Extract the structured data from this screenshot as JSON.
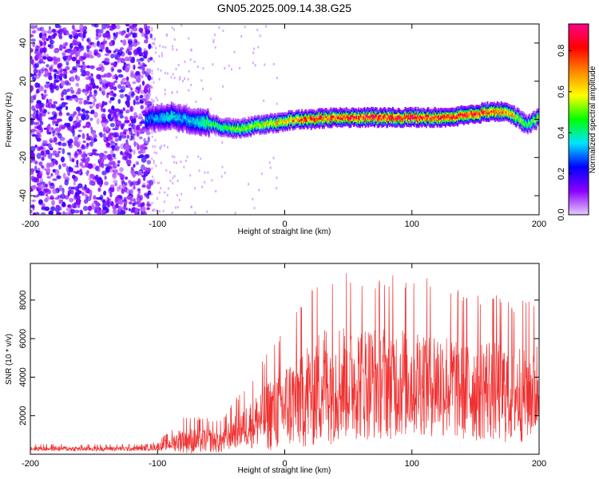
{
  "title": "GN05.2025.009.14.38.G25",
  "chart_data": [
    {
      "type": "heatmap",
      "xlabel": "Height of straight line (km)",
      "ylabel": "Frequency (Hz)",
      "xlim": [
        -200,
        200
      ],
      "ylim": [
        -50,
        50
      ],
      "xticks": [
        "-200",
        "-100",
        "0",
        "100",
        "200"
      ],
      "yticks": [
        "-40",
        "-20",
        "0",
        "20",
        "40"
      ],
      "colorbar": {
        "label": "Normalized spectral amplitude",
        "range": [
          0,
          0.93
        ],
        "ticks": [
          "0.0",
          "0.2",
          "0.4",
          "0.6",
          "0.8"
        ],
        "colormap": [
          "#e6ccff",
          "#8a00ff",
          "#0000ff",
          "#00e5ff",
          "#00ff00",
          "#ffff00",
          "#ff8800",
          "#ff0000",
          "#ff0088"
        ]
      },
      "ridge": {
        "x": [
          -110,
          -100,
          -90,
          -80,
          -70,
          -60,
          -50,
          -40,
          -30,
          -20,
          -10,
          0,
          10,
          20,
          30,
          40,
          50,
          60,
          70,
          80,
          90,
          100,
          110,
          120,
          130,
          140,
          150,
          160,
          170,
          180,
          190,
          200
        ],
        "frequency": [
          0,
          1,
          2,
          0,
          -1,
          -2,
          -4,
          -5,
          -4,
          -3,
          -2,
          -1,
          0,
          0,
          0.5,
          1,
          1,
          1,
          1,
          1,
          1,
          1,
          1,
          1,
          1.5,
          2,
          3,
          4,
          4,
          2,
          -3,
          1
        ],
        "peak_amplitude": [
          0.3,
          0.35,
          0.4,
          0.35,
          0.4,
          0.5,
          0.5,
          0.55,
          0.6,
          0.6,
          0.65,
          0.7,
          0.75,
          0.8,
          0.8,
          0.82,
          0.85,
          0.88,
          0.9,
          0.9,
          0.9,
          0.88,
          0.85,
          0.85,
          0.85,
          0.85,
          0.85,
          0.85,
          0.8,
          0.7,
          0.5,
          0.6
        ]
      },
      "noise_region": {
        "x_range": [
          -200,
          -105
        ],
        "amplitude_range": [
          0.05,
          0.2
        ]
      }
    },
    {
      "type": "line",
      "xlabel": "Height of straight line (km)",
      "ylabel": "SNR (10 * v/v)",
      "xlim": [
        -200,
        200
      ],
      "ylim": [
        0,
        9900
      ],
      "xticks": [
        "-200",
        "-100",
        "0",
        "100",
        "200"
      ],
      "yticks": [
        "2000",
        "4000",
        "6000",
        "8000"
      ],
      "color": "#f03030",
      "series": [
        {
          "x": [
            -200,
            -180,
            -160,
            -140,
            -120,
            -105,
            -90,
            -80,
            -70,
            -60,
            -50,
            -40,
            -30,
            -20,
            -10,
            0,
            10,
            20,
            30,
            40,
            50,
            60,
            70,
            80,
            90,
            100,
            110,
            120,
            130,
            140,
            150,
            160,
            170,
            180,
            190,
            200
          ],
          "y": [
            300,
            300,
            280,
            300,
            290,
            320,
            550,
            800,
            700,
            750,
            650,
            1200,
            1500,
            1800,
            2200,
            2500,
            2900,
            3200,
            3700,
            3800,
            3900,
            3850,
            3800,
            3900,
            3850,
            3800,
            3900,
            3800,
            3600,
            3500,
            3400,
            3500,
            3300,
            3200,
            3300,
            3400
          ],
          "spread": [
            150,
            150,
            150,
            150,
            150,
            150,
            400,
            800,
            800,
            700,
            700,
            1000,
            1300,
            1700,
            2300,
            2600,
            2900,
            3300,
            3600,
            3600,
            3500,
            3500,
            3400,
            3500,
            3400,
            3300,
            3300,
            3300,
            3200,
            3200,
            3100,
            3100,
            3100,
            3000,
            3000,
            3000
          ]
        }
      ]
    }
  ]
}
